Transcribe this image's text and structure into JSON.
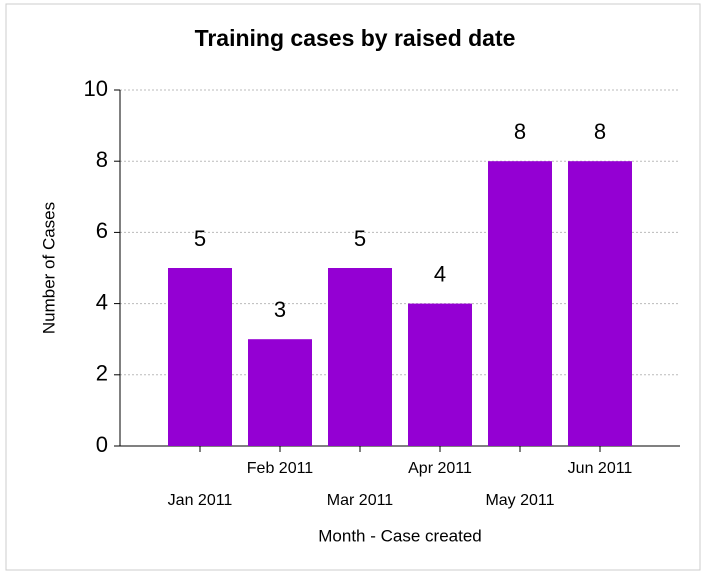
{
  "chart_data": {
    "type": "bar",
    "title": "Training cases by raised date",
    "x_label": "Month - Case created",
    "y_label": "Number of Cases",
    "categories": [
      "Jan 2011",
      "Feb 2011",
      "Mar 2011",
      "Apr 2011",
      "May 2011",
      "Jun 2011"
    ],
    "values": [
      5,
      3,
      5,
      4,
      8,
      8
    ],
    "color": "#9400d3",
    "ylim": [
      0,
      10
    ],
    "yticks": [
      0,
      2,
      4,
      6,
      8,
      10
    ],
    "grid": true
  }
}
